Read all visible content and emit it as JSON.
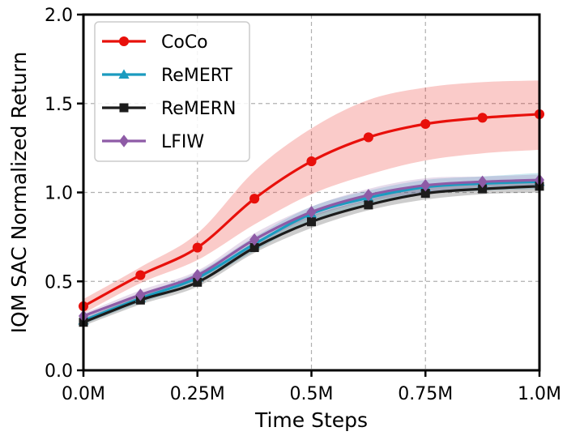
{
  "chart_data": {
    "type": "line",
    "xlabel": "Time Steps",
    "ylabel": "IQM SAC Normalized Return",
    "xlim": [
      0,
      1.0
    ],
    "ylim": [
      0,
      2.0
    ],
    "x_ticks": [
      {
        "value": 0.0,
        "label": "0.0M"
      },
      {
        "value": 0.25,
        "label": "0.25M"
      },
      {
        "value": 0.5,
        "label": "0.5M"
      },
      {
        "value": 0.75,
        "label": "0.75M"
      },
      {
        "value": 1.0,
        "label": "1.0M"
      }
    ],
    "y_ticks": [
      {
        "value": 0.0,
        "label": "0.0"
      },
      {
        "value": 0.5,
        "label": "0.5"
      },
      {
        "value": 1.0,
        "label": "1.0"
      },
      {
        "value": 1.5,
        "label": "1.5"
      },
      {
        "value": 2.0,
        "label": "2.0"
      }
    ],
    "grid": true,
    "legend_position": "top-left",
    "x": [
      0.0,
      0.125,
      0.25,
      0.375,
      0.5,
      0.625,
      0.75,
      0.875,
      1.0
    ],
    "series": [
      {
        "name": "CoCo",
        "color": "#e8100b",
        "marker": "circle",
        "values": [
          0.36,
          0.535,
          0.69,
          0.965,
          1.175,
          1.31,
          1.385,
          1.42,
          1.44
        ],
        "lower": [
          0.32,
          0.49,
          0.62,
          0.82,
          0.99,
          1.1,
          1.18,
          1.22,
          1.24
        ],
        "upper": [
          0.4,
          0.58,
          0.77,
          1.12,
          1.36,
          1.52,
          1.59,
          1.62,
          1.63
        ]
      },
      {
        "name": "ReMERT",
        "color": "#1b9bbf",
        "marker": "triangle",
        "values": [
          0.28,
          0.405,
          0.52,
          0.71,
          0.88,
          0.97,
          1.03,
          1.05,
          1.06
        ],
        "lower": [
          0.26,
          0.38,
          0.49,
          0.67,
          0.84,
          0.93,
          0.99,
          1.01,
          1.02
        ],
        "upper": [
          0.3,
          0.43,
          0.55,
          0.75,
          0.92,
          1.01,
          1.07,
          1.09,
          1.11
        ]
      },
      {
        "name": "ReMERN",
        "color": "#1c1c1c",
        "marker": "square",
        "values": [
          0.27,
          0.395,
          0.495,
          0.69,
          0.835,
          0.93,
          0.995,
          1.02,
          1.035
        ],
        "lower": [
          0.25,
          0.37,
          0.47,
          0.66,
          0.8,
          0.9,
          0.96,
          0.99,
          1.0
        ],
        "upper": [
          0.29,
          0.42,
          0.52,
          0.72,
          0.87,
          0.96,
          1.03,
          1.05,
          1.07
        ]
      },
      {
        "name": "LFIW",
        "color": "#8e5ba6",
        "marker": "diamond",
        "values": [
          0.305,
          0.425,
          0.535,
          0.735,
          0.89,
          0.985,
          1.04,
          1.06,
          1.07
        ],
        "lower": [
          0.29,
          0.4,
          0.51,
          0.7,
          0.86,
          0.95,
          1.0,
          1.03,
          1.04
        ],
        "upper": [
          0.32,
          0.45,
          0.56,
          0.77,
          0.92,
          1.02,
          1.08,
          1.09,
          1.1
        ]
      }
    ]
  }
}
